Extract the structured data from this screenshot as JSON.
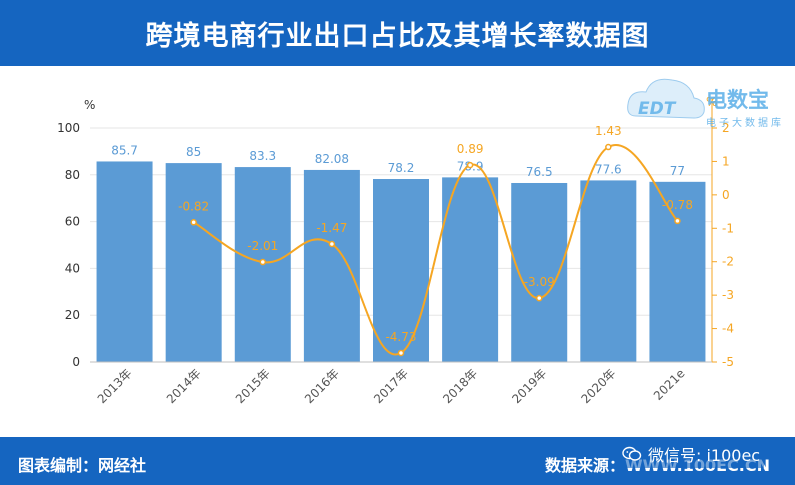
{
  "header": {
    "title": "跨境电商行业出口占比及其增长率数据图"
  },
  "footer": {
    "left_text": "图表编制：网经社",
    "right_text": "数据来源：WWW.100EC.CN",
    "wechat_text": "微信号: i100ec"
  },
  "logo": {
    "brand": "电数宝",
    "sub": "电子大数据库",
    "mark": "EDT"
  },
  "chart_data": {
    "type": "bar",
    "categories": [
      "2013年",
      "2014年",
      "2015年",
      "2016年",
      "2017年",
      "2018年",
      "2019年",
      "2020年",
      "2021e"
    ],
    "series": [
      {
        "type": "bar",
        "axis": "left",
        "values": [
          85.7,
          85,
          83.3,
          82.08,
          78.2,
          78.9,
          76.5,
          77.6,
          77
        ],
        "labels": [
          "85.7",
          "85",
          "83.3",
          "82.08",
          "78.2",
          "78.9",
          "76.5",
          "77.6",
          "77"
        ]
      },
      {
        "type": "line",
        "axis": "right",
        "values": [
          null,
          -0.82,
          -2.01,
          -1.47,
          -4.73,
          0.89,
          -3.09,
          1.43,
          -0.78
        ],
        "labels": [
          "",
          "-0.82",
          "-2.01",
          "-1.47",
          "-4.73",
          "0.89",
          "-3.09",
          "1.43",
          "-0.78"
        ]
      }
    ],
    "y_left": {
      "unit": "%",
      "range": [
        0,
        100
      ],
      "ticks": [
        0,
        20,
        40,
        60,
        80,
        100
      ]
    },
    "y_right": {
      "unit": "%",
      "range": [
        -5,
        2
      ],
      "ticks": [
        -5,
        -4,
        -3,
        -2,
        -1,
        0,
        1,
        2
      ]
    },
    "grid": true,
    "colors": {
      "bar": "#5b9bd5",
      "line": "#f5a623",
      "bar_label": "#5b9bd5",
      "line_label": "#f5a623",
      "right_axis": "#f5a623",
      "left_axis": "#333333"
    }
  }
}
